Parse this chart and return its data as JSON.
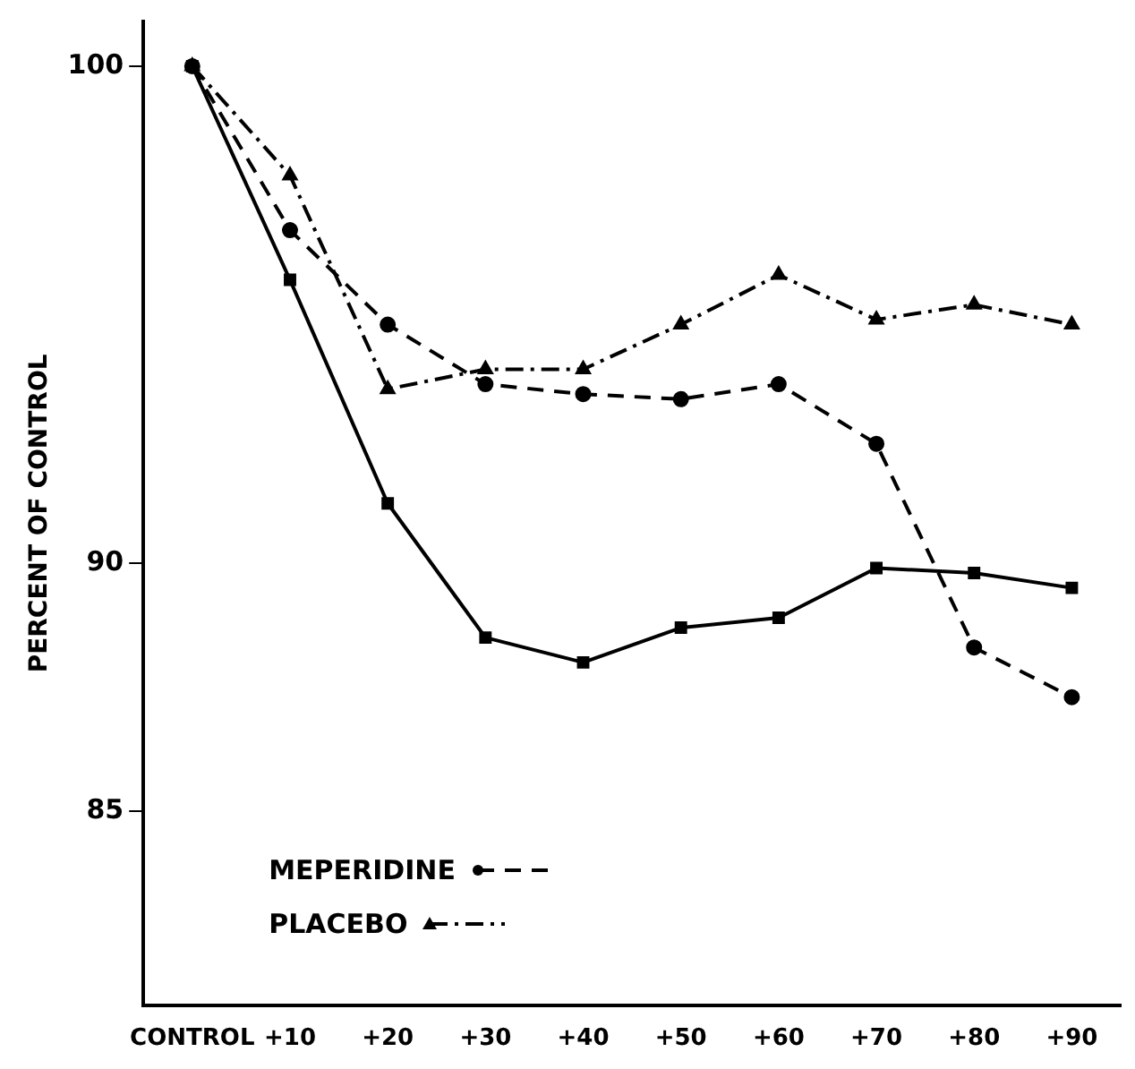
{
  "chart_data": {
    "type": "line",
    "ylabel": "PERCENT OF CONTROL",
    "categories": [
      "CONTROL",
      "+10",
      "+20",
      "+30",
      "+40",
      "+50",
      "+60",
      "+70",
      "+80",
      "+90"
    ],
    "series": [
      {
        "color": "#000000",
        "marker": "square",
        "line_style": "solid",
        "values": [
          100,
          95.7,
          91.2,
          88.5,
          88,
          88.7,
          88.9,
          89.9,
          89.8,
          89.5
        ]
      },
      {
        "name": "MEPERIDINE",
        "color": "#000000",
        "marker": "circle",
        "line_style": "dashed",
        "values": [
          100,
          96.7,
          94.8,
          93.6,
          93.4,
          93.3,
          93.6,
          92.4,
          88.3,
          87.3
        ]
      },
      {
        "name": "PLACEBO",
        "color": "#000000",
        "marker": "triangle",
        "line_style": "dashdot",
        "values": [
          100,
          97.8,
          93.5,
          93.9,
          93.9,
          94.8,
          95.8,
          94.9,
          95.2,
          94.8
        ]
      }
    ],
    "ylim": [
      81.1,
      100.9
    ],
    "yticks": [
      85,
      90,
      100
    ],
    "grid": false,
    "legend": "bottom left"
  }
}
